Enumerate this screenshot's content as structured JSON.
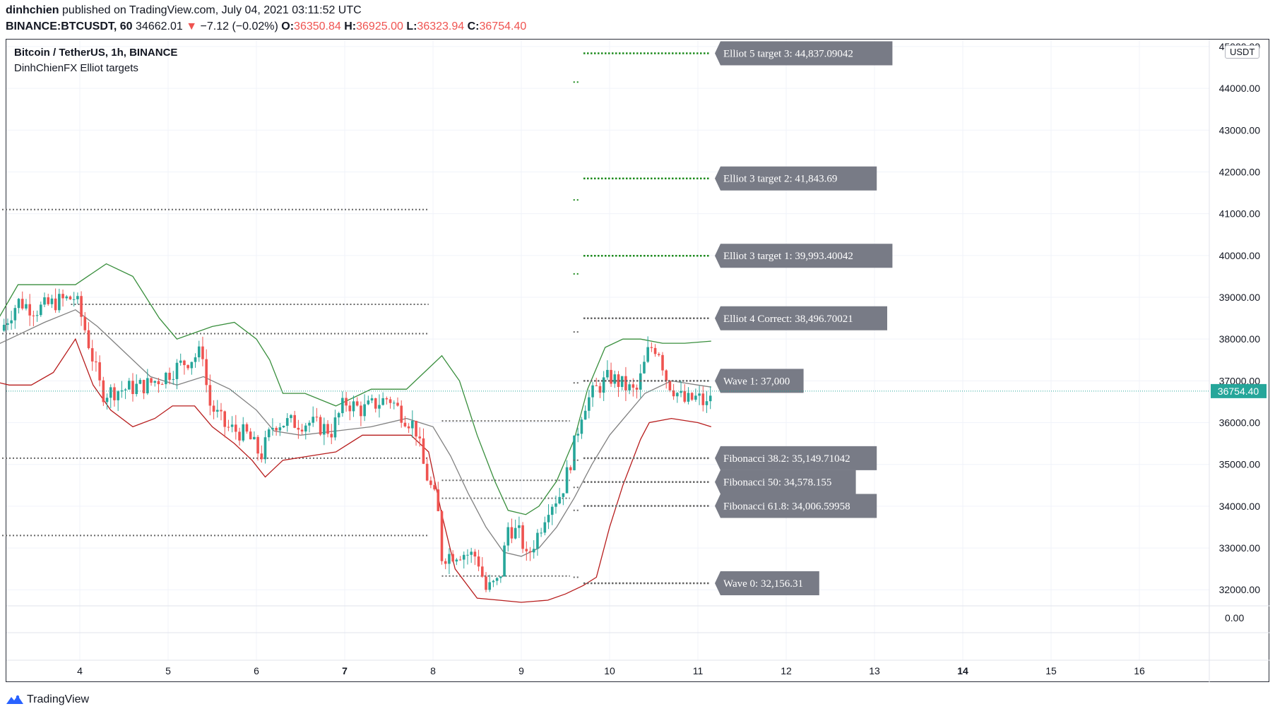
{
  "header": {
    "author": "dinhchien",
    "published": "published on TradingView.com, July 04, 2021 03:11:52 UTC",
    "symbol": "BINANCE:BTCUSDT, 60",
    "last": "34662.01",
    "change_arrow": "▼",
    "change": "−7.12 (−0.02%)",
    "o_label": "O:",
    "o_value": "36350.84",
    "h_label": "H:",
    "h_value": "36925.00",
    "l_label": "L:",
    "l_value": "36323.94",
    "c_label": "C:",
    "c_value": "36754.40"
  },
  "legend": {
    "title": "Bitcoin / TetherUS, 1h, BINANCE",
    "indicator": "DinhChienFX Elliot targets"
  },
  "currency_unit": "USDT",
  "footer": {
    "brand": "TradingView",
    "logo_icon": "tradingview-logo-icon"
  },
  "colors": {
    "up": "#26a69a",
    "down": "#ef5350",
    "band_upper": "#388e3c",
    "band_lower": "#b71c1c",
    "basis": "#808080",
    "target_line": "#1b8a1b",
    "level_line": "#666666",
    "label_bg": "#787b86",
    "price_tag": "#26a69a"
  },
  "chart_data": {
    "type": "candlestick",
    "title": "Bitcoin / TetherUS, 1h, BINANCE",
    "xlabel": "",
    "ylabel": "",
    "x_ticks": [
      "4",
      "5",
      "6",
      "7",
      "8",
      "9",
      "10",
      "11",
      "12",
      "13",
      "14",
      "15",
      "16"
    ],
    "x_ticks_bold": [
      "7",
      "14"
    ],
    "y_ticks": [
      "45000.00",
      "44000.00",
      "43000.00",
      "42000.00",
      "41000.00",
      "40000.00",
      "39000.00",
      "38000.00",
      "37000.00",
      "36000.00",
      "35000.00",
      "34000.00",
      "33000.00",
      "32000.00"
    ],
    "ylim": [
      31700,
      45100
    ],
    "lower_pane_ticks": [
      "0.00"
    ],
    "last_price": 36754.4,
    "last_price_label": "36754.40",
    "close_path": [
      {
        "day": 3.1,
        "price": 38200
      },
      {
        "day": 3.3,
        "price": 38900
      },
      {
        "day": 3.5,
        "price": 38700
      },
      {
        "day": 3.75,
        "price": 38900
      },
      {
        "day": 3.95,
        "price": 39000
      },
      {
        "day": 4.05,
        "price": 38300
      },
      {
        "day": 4.25,
        "price": 36700
      },
      {
        "day": 4.5,
        "price": 36800
      },
      {
        "day": 4.75,
        "price": 36900
      },
      {
        "day": 4.95,
        "price": 37100
      },
      {
        "day": 5.15,
        "price": 37400
      },
      {
        "day": 5.4,
        "price": 37700
      },
      {
        "day": 5.45,
        "price": 36500
      },
      {
        "day": 5.65,
        "price": 35900
      },
      {
        "day": 5.9,
        "price": 35700
      },
      {
        "day": 6.05,
        "price": 35200
      },
      {
        "day": 6.2,
        "price": 36000
      },
      {
        "day": 6.4,
        "price": 36000
      },
      {
        "day": 6.6,
        "price": 36000
      },
      {
        "day": 6.85,
        "price": 35800
      },
      {
        "day": 7.0,
        "price": 36500
      },
      {
        "day": 7.2,
        "price": 36300
      },
      {
        "day": 7.5,
        "price": 36600
      },
      {
        "day": 7.65,
        "price": 36200
      },
      {
        "day": 7.8,
        "price": 35900
      },
      {
        "day": 7.9,
        "price": 34900
      },
      {
        "day": 8.05,
        "price": 34000
      },
      {
        "day": 8.1,
        "price": 32800
      },
      {
        "day": 8.3,
        "price": 32900
      },
      {
        "day": 8.5,
        "price": 32800
      },
      {
        "day": 8.6,
        "price": 32000
      },
      {
        "day": 8.75,
        "price": 32200
      },
      {
        "day": 8.85,
        "price": 33500
      },
      {
        "day": 9.0,
        "price": 33300
      },
      {
        "day": 9.05,
        "price": 32700
      },
      {
        "day": 9.2,
        "price": 33400
      },
      {
        "day": 9.3,
        "price": 34000
      },
      {
        "day": 9.45,
        "price": 34300
      },
      {
        "day": 9.55,
        "price": 35000
      },
      {
        "day": 9.7,
        "price": 36400
      },
      {
        "day": 9.85,
        "price": 36800
      },
      {
        "day": 10.0,
        "price": 37100
      },
      {
        "day": 10.15,
        "price": 36900
      },
      {
        "day": 10.3,
        "price": 36700
      },
      {
        "day": 10.45,
        "price": 37800
      },
      {
        "day": 10.55,
        "price": 37800
      },
      {
        "day": 10.65,
        "price": 37000
      },
      {
        "day": 10.85,
        "price": 36500
      },
      {
        "day": 11.0,
        "price": 36600
      },
      {
        "day": 11.1,
        "price": 36400
      },
      {
        "day": 11.15,
        "price": 36750
      }
    ],
    "bands": {
      "upper": [
        {
          "day": 3.0,
          "price": 38200
        },
        {
          "day": 3.3,
          "price": 39300
        },
        {
          "day": 3.6,
          "price": 39300
        },
        {
          "day": 3.95,
          "price": 39300
        },
        {
          "day": 4.3,
          "price": 39800
        },
        {
          "day": 4.6,
          "price": 39500
        },
        {
          "day": 4.9,
          "price": 38500
        },
        {
          "day": 5.1,
          "price": 38000
        },
        {
          "day": 5.5,
          "price": 38300
        },
        {
          "day": 5.75,
          "price": 38400
        },
        {
          "day": 6.0,
          "price": 38000
        },
        {
          "day": 6.15,
          "price": 37500
        },
        {
          "day": 6.3,
          "price": 36700
        },
        {
          "day": 6.55,
          "price": 36700
        },
        {
          "day": 6.9,
          "price": 36400
        },
        {
          "day": 7.3,
          "price": 36800
        },
        {
          "day": 7.7,
          "price": 36800
        },
        {
          "day": 7.9,
          "price": 37200
        },
        {
          "day": 8.1,
          "price": 37600
        },
        {
          "day": 8.3,
          "price": 37000
        },
        {
          "day": 8.5,
          "price": 35700
        },
        {
          "day": 8.7,
          "price": 34600
        },
        {
          "day": 8.85,
          "price": 33900
        },
        {
          "day": 9.05,
          "price": 33800
        },
        {
          "day": 9.2,
          "price": 34000
        },
        {
          "day": 9.4,
          "price": 34600
        },
        {
          "day": 9.6,
          "price": 35600
        },
        {
          "day": 9.75,
          "price": 36800
        },
        {
          "day": 9.95,
          "price": 37800
        },
        {
          "day": 10.15,
          "price": 38000
        },
        {
          "day": 10.35,
          "price": 38000
        },
        {
          "day": 10.6,
          "price": 37900
        },
        {
          "day": 10.85,
          "price": 37900
        },
        {
          "day": 11.15,
          "price": 37950
        }
      ],
      "basis": [
        {
          "day": 3.0,
          "price": 37800
        },
        {
          "day": 3.3,
          "price": 38100
        },
        {
          "day": 3.6,
          "price": 38400
        },
        {
          "day": 3.95,
          "price": 38700
        },
        {
          "day": 4.2,
          "price": 38300
        },
        {
          "day": 4.5,
          "price": 37700
        },
        {
          "day": 4.8,
          "price": 37100
        },
        {
          "day": 5.1,
          "price": 36900
        },
        {
          "day": 5.4,
          "price": 37100
        },
        {
          "day": 5.7,
          "price": 36800
        },
        {
          "day": 6.0,
          "price": 36300
        },
        {
          "day": 6.2,
          "price": 35800
        },
        {
          "day": 6.5,
          "price": 35700
        },
        {
          "day": 6.9,
          "price": 35800
        },
        {
          "day": 7.3,
          "price": 35900
        },
        {
          "day": 7.7,
          "price": 36100
        },
        {
          "day": 8.0,
          "price": 35900
        },
        {
          "day": 8.2,
          "price": 35200
        },
        {
          "day": 8.4,
          "price": 34300
        },
        {
          "day": 8.6,
          "price": 33500
        },
        {
          "day": 8.8,
          "price": 32900
        },
        {
          "day": 9.0,
          "price": 32800
        },
        {
          "day": 9.2,
          "price": 33000
        },
        {
          "day": 9.4,
          "price": 33500
        },
        {
          "day": 9.6,
          "price": 34200
        },
        {
          "day": 9.8,
          "price": 35000
        },
        {
          "day": 10.0,
          "price": 35700
        },
        {
          "day": 10.2,
          "price": 36200
        },
        {
          "day": 10.4,
          "price": 36700
        },
        {
          "day": 10.7,
          "price": 37000
        },
        {
          "day": 11.0,
          "price": 36900
        },
        {
          "day": 11.15,
          "price": 36850
        }
      ],
      "lower": [
        {
          "day": 3.0,
          "price": 37000
        },
        {
          "day": 3.2,
          "price": 36900
        },
        {
          "day": 3.45,
          "price": 36900
        },
        {
          "day": 3.7,
          "price": 37200
        },
        {
          "day": 3.95,
          "price": 38000
        },
        {
          "day": 4.15,
          "price": 36900
        },
        {
          "day": 4.35,
          "price": 36300
        },
        {
          "day": 4.6,
          "price": 35900
        },
        {
          "day": 4.85,
          "price": 36100
        },
        {
          "day": 5.05,
          "price": 36400
        },
        {
          "day": 5.3,
          "price": 36400
        },
        {
          "day": 5.5,
          "price": 35900
        },
        {
          "day": 5.75,
          "price": 35500
        },
        {
          "day": 5.95,
          "price": 35100
        },
        {
          "day": 6.1,
          "price": 34700
        },
        {
          "day": 6.3,
          "price": 35100
        },
        {
          "day": 6.6,
          "price": 35200
        },
        {
          "day": 6.9,
          "price": 35300
        },
        {
          "day": 7.2,
          "price": 35700
        },
        {
          "day": 7.5,
          "price": 35700
        },
        {
          "day": 7.75,
          "price": 35700
        },
        {
          "day": 7.95,
          "price": 35300
        },
        {
          "day": 8.1,
          "price": 33800
        },
        {
          "day": 8.25,
          "price": 32500
        },
        {
          "day": 8.5,
          "price": 31800
        },
        {
          "day": 8.75,
          "price": 31750
        },
        {
          "day": 9.0,
          "price": 31700
        },
        {
          "day": 9.3,
          "price": 31750
        },
        {
          "day": 9.5,
          "price": 31900
        },
        {
          "day": 9.7,
          "price": 32100
        },
        {
          "day": 9.85,
          "price": 32300
        },
        {
          "day": 10.0,
          "price": 33500
        },
        {
          "day": 10.15,
          "price": 34500
        },
        {
          "day": 10.35,
          "price": 35600
        },
        {
          "day": 10.45,
          "price": 36000
        },
        {
          "day": 10.7,
          "price": 36100
        },
        {
          "day": 11.0,
          "price": 36000
        },
        {
          "day": 11.15,
          "price": 35900
        }
      ]
    },
    "elliott_targets": [
      {
        "label": "Elliot 5 target 3: 44,837.09042",
        "price": 44837.09042,
        "color_key": "target_line"
      },
      {
        "label": "Elliot 3 target 2: 41,843.69",
        "price": 41843.69,
        "color_key": "target_line"
      },
      {
        "label": "Elliot 3 target 1: 39,993.40042",
        "price": 39993.40042,
        "color_key": "target_line"
      },
      {
        "label": "Elliot 4 Correct: 38,496.70021",
        "price": 38496.70021,
        "color_key": "level_line"
      },
      {
        "label": "Wave 1: 37,000",
        "price": 37000,
        "color_key": "level_line"
      },
      {
        "label": "Fibonacci 38.2: 35,149.71042",
        "price": 35149.71042,
        "color_key": "level_line"
      },
      {
        "label": "Fibonacci 50: 34,578.155",
        "price": 34578.155,
        "color_key": "level_line"
      },
      {
        "label": "Fibonacci 61.8: 34,006.59958",
        "price": 34006.59958,
        "color_key": "level_line"
      },
      {
        "label": "Wave 0: 32,156.31",
        "price": 32156.31,
        "color_key": "level_line"
      }
    ],
    "historical_levels": [
      {
        "price": 41100,
        "from_day": 3.0,
        "to_day": 7.95
      },
      {
        "price": 38830,
        "from_day": 3.9,
        "to_day": 7.95
      },
      {
        "price": 38130,
        "from_day": 3.0,
        "to_day": 7.95
      },
      {
        "price": 35150,
        "from_day": 3.0,
        "to_day": 7.95
      },
      {
        "price": 33300,
        "from_day": 3.0,
        "to_day": 7.95
      },
      {
        "price": 36040,
        "from_day": 8.1,
        "to_day": 9.55
      },
      {
        "price": 34620,
        "from_day": 8.1,
        "to_day": 9.55
      },
      {
        "price": 34190,
        "from_day": 8.1,
        "to_day": 9.55
      },
      {
        "price": 32330,
        "from_day": 8.1,
        "to_day": 9.55
      }
    ],
    "wave_markers": [
      {
        "day": 9.63,
        "price": 44150,
        "color_key": "target_line"
      },
      {
        "day": 9.63,
        "price": 41330,
        "color_key": "target_line"
      },
      {
        "day": 9.63,
        "price": 39560,
        "color_key": "target_line"
      },
      {
        "day": 9.63,
        "price": 38170,
        "color_key": "level_line"
      },
      {
        "day": 9.63,
        "price": 36950,
        "color_key": "level_line"
      },
      {
        "day": 9.63,
        "price": 35100,
        "color_key": "level_line"
      },
      {
        "day": 9.63,
        "price": 34450,
        "color_key": "level_line"
      },
      {
        "day": 9.63,
        "price": 33900,
        "color_key": "level_line"
      },
      {
        "day": 9.63,
        "price": 32300,
        "color_key": "level_line"
      }
    ]
  }
}
